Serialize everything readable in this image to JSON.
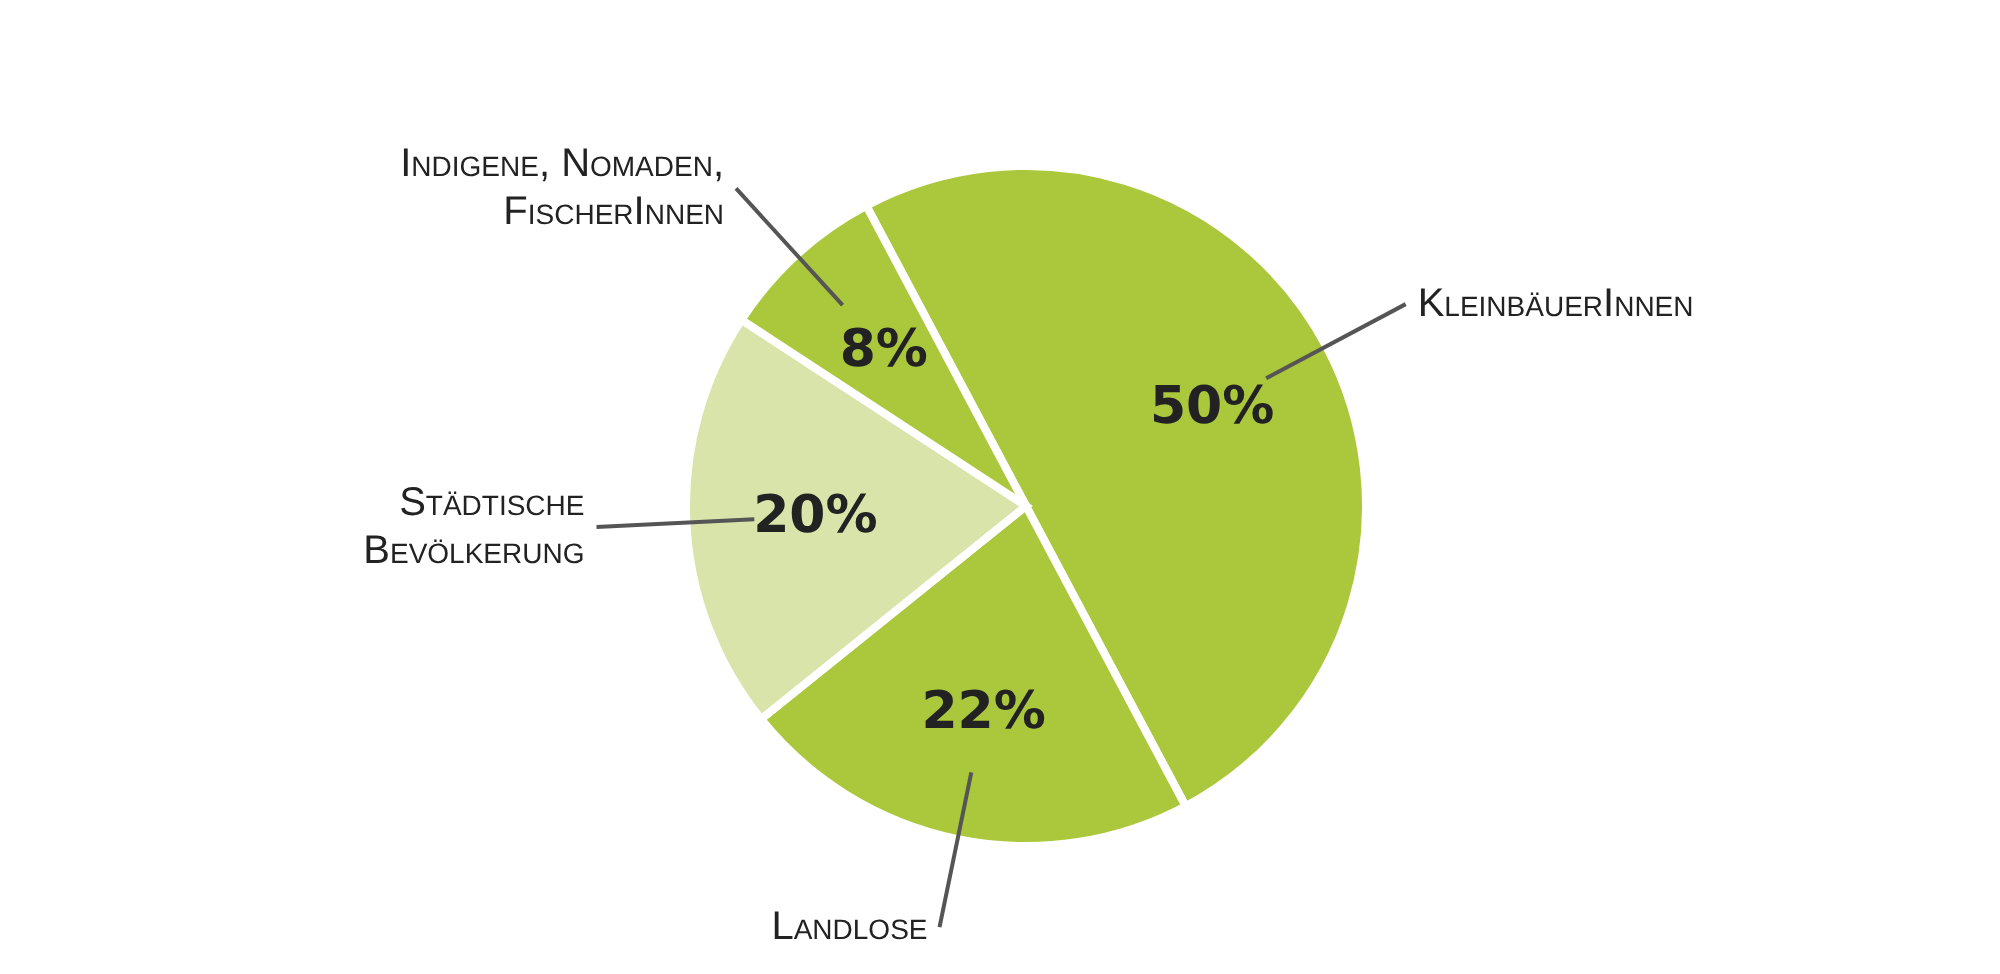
{
  "chart_data": {
    "type": "pie",
    "categories": [
      "KleinbäuerInnen",
      "Landlose",
      "Städtische Bevölkerung",
      "Indigene, Nomaden, FischerInnen"
    ],
    "values": [
      50,
      22,
      20,
      8
    ],
    "value_labels": [
      "50%",
      "22%",
      "20%",
      "8%"
    ],
    "colors": [
      "#abc83c",
      "#abc83c",
      "#d8e4a9",
      "#abc83c"
    ]
  }
}
